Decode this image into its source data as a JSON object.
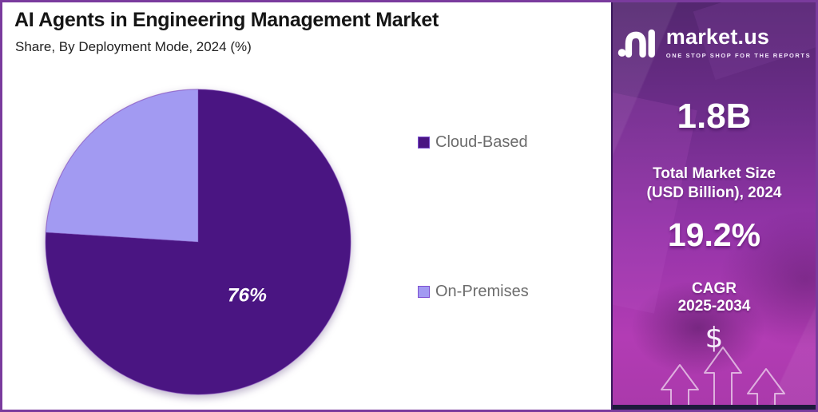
{
  "header": {
    "title": "AI Agents in Engineering Management Market",
    "subtitle": "Share, By Deployment Mode, 2024 (%)"
  },
  "chart_data": {
    "type": "pie",
    "title": "AI Agents in Engineering Management Market",
    "subtitle": "Share, By Deployment Mode, 2024 (%)",
    "categories": [
      "Cloud-Based",
      "On-Premises"
    ],
    "values": [
      76,
      24
    ],
    "unit": "%",
    "colors": [
      "#4A1582",
      "#A29AF2"
    ],
    "data_labels": [
      "76%",
      ""
    ],
    "legend_position": "right",
    "start_angle": "12 o'clock",
    "direction": "clockwise"
  },
  "sidebar": {
    "brand": {
      "name": "market.us",
      "tagline": "ONE STOP SHOP FOR THE REPORTS"
    },
    "stats": {
      "market_size_value": "1.8B",
      "market_size_label_line1": "Total Market Size",
      "market_size_label_line2": "(USD Billion), 2024",
      "cagr_value": "19.2%",
      "cagr_label_line1": "CAGR",
      "cagr_label_line2": "2025-2034",
      "currency_symbol": "$"
    }
  },
  "theme": {
    "frame_border": "#7a3b9d",
    "slice_dark": "#4A1582",
    "slice_light": "#A29AF2",
    "legend_swatch_border": "#7d4fd1",
    "legend_text": "#6c6c6c",
    "sidebar_gradient_top": "#53276f",
    "sidebar_gradient_bottom": "#b23cb4",
    "slice_label_color": "#ffffff"
  }
}
